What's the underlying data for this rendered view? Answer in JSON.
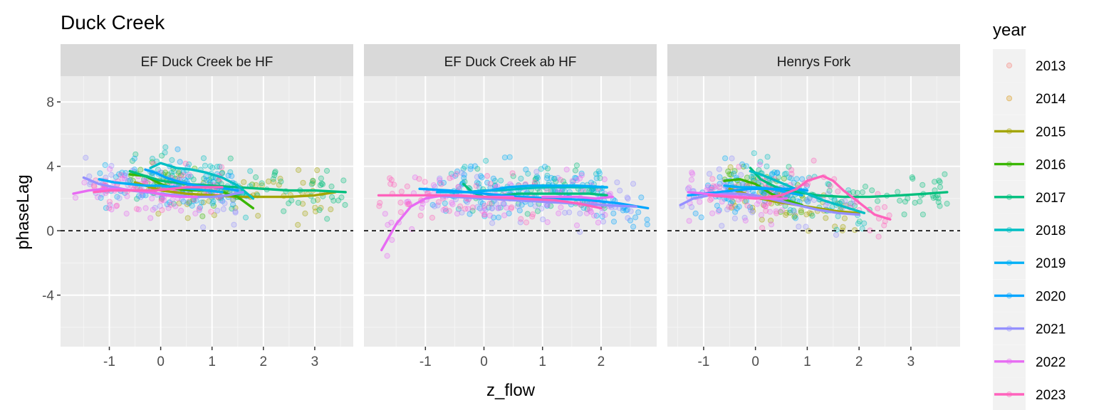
{
  "chart_data": {
    "type": "scatter",
    "title": "Duck Creek",
    "xlabel": "z_flow",
    "ylabel": "phaseLag",
    "ylim": [
      -7.2,
      9.6
    ],
    "y_ticks": [
      -4,
      0,
      4,
      8
    ],
    "reference_line_y": 0,
    "grid": true,
    "legend": {
      "title": "year",
      "position": "right",
      "entries": [
        {
          "name": "2013",
          "color": "#F8766D",
          "smooth": false
        },
        {
          "name": "2014",
          "color": "#D89000",
          "smooth": false
        },
        {
          "name": "2015",
          "color": "#A3A500",
          "smooth": true
        },
        {
          "name": "2016",
          "color": "#39B600",
          "smooth": true
        },
        {
          "name": "2017",
          "color": "#00BF7D",
          "smooth": true
        },
        {
          "name": "2018",
          "color": "#00BFC4",
          "smooth": true
        },
        {
          "name": "2019",
          "color": "#00B0F6",
          "smooth": true
        },
        {
          "name": "2020",
          "color": "#00A5FF",
          "smooth": true
        },
        {
          "name": "2021",
          "color": "#9590FF",
          "smooth": true
        },
        {
          "name": "2022",
          "color": "#E76BF3",
          "smooth": true
        },
        {
          "name": "2023",
          "color": "#FF62BC",
          "smooth": true
        }
      ]
    },
    "panels": [
      {
        "label": "EF Duck Creek be HF",
        "xlim": [
          -1.95,
          3.75
        ],
        "x_ticks": [
          -1,
          0,
          1,
          2,
          3
        ],
        "smooth": [
          {
            "year": "2015",
            "x": [
              -0.5,
              0,
              0.5,
              1,
              1.5,
              2,
              2.5,
              3,
              3.4
            ],
            "y": [
              3.0,
              2.5,
              2.3,
              2.2,
              2.1,
              2.1,
              2.1,
              2.2,
              2.4
            ]
          },
          {
            "year": "2016",
            "x": [
              -0.6,
              -0.3,
              0,
              0.3,
              0.6,
              0.9,
              1.2,
              1.5,
              1.8
            ],
            "y": [
              3.5,
              3.4,
              2.9,
              2.6,
              2.5,
              2.5,
              2.4,
              2.1,
              1.4
            ]
          },
          {
            "year": "2017",
            "x": [
              -0.6,
              0,
              0.5,
              1,
              1.5,
              2,
              2.5,
              3,
              3.6
            ],
            "y": [
              3.7,
              3.1,
              2.9,
              2.8,
              2.7,
              2.6,
              2.5,
              2.5,
              2.4
            ]
          },
          {
            "year": "2018",
            "x": [
              -0.2,
              0,
              0.3,
              0.6,
              0.9,
              1.2,
              1.5,
              1.8
            ],
            "y": [
              3.9,
              4.2,
              3.9,
              3.8,
              3.6,
              3.3,
              2.8,
              2.0
            ]
          },
          {
            "year": "2019",
            "x": [
              -1.2,
              -0.9,
              -0.6,
              -0.3,
              0,
              0.3,
              0.6,
              0.9,
              1.2
            ],
            "y": [
              3.2,
              3.0,
              2.9,
              2.8,
              2.8,
              2.7,
              2.6,
              2.5,
              2.4
            ]
          },
          {
            "year": "2020",
            "x": [
              -0.3,
              -0.1,
              0.1,
              0.4,
              0.7,
              1,
              1.3,
              1.5
            ],
            "y": [
              3.8,
              3.6,
              3.3,
              3.0,
              2.8,
              2.7,
              2.6,
              2.5
            ]
          },
          {
            "year": "2021",
            "x": [
              -1.5,
              -1.2,
              -0.9,
              -0.6,
              -0.3,
              0,
              0.3,
              0.6,
              1,
              1.3,
              1.6
            ],
            "y": [
              3.3,
              2.9,
              2.7,
              2.5,
              2.4,
              2.3,
              2.2,
              2.1,
              2.1,
              2.2,
              2.4
            ]
          },
          {
            "year": "2022",
            "x": [
              -1.7,
              -1.4,
              -1.1,
              -0.8,
              -0.5,
              -0.2,
              0.1,
              0.4,
              0.7
            ],
            "y": [
              2.3,
              2.5,
              2.6,
              2.6,
              2.5,
              2.4,
              2.2,
              2.1,
              2.1
            ]
          },
          {
            "year": "2023",
            "x": [
              -1.3,
              -1,
              -0.7,
              -0.4,
              -0.1,
              0.2,
              0.5,
              0.8,
              1.2
            ],
            "y": [
              2.4,
              2.5,
              2.5,
              2.5,
              2.5,
              2.6,
              2.7,
              2.7,
              2.7
            ]
          }
        ]
      },
      {
        "label": "EF Duck Creek ab HF",
        "xlim": [
          -2.05,
          2.95
        ],
        "x_ticks": [
          -1,
          0,
          1,
          2
        ],
        "smooth": [
          {
            "year": "2017",
            "x": [
              -0.35,
              -0.2,
              0,
              0.3,
              0.6,
              1,
              1.4,
              1.8,
              2.1
            ],
            "y": [
              2.9,
              2.4,
              2.1,
              2.2,
              2.3,
              2.3,
              2.3,
              2.3,
              2.2
            ]
          },
          {
            "year": "2018",
            "x": [
              -0.6,
              -0.3,
              0,
              0.3,
              0.6,
              1,
              1.4,
              1.8,
              2.1
            ],
            "y": [
              2.4,
              2.4,
              2.5,
              2.5,
              2.6,
              2.7,
              2.7,
              2.7,
              2.7
            ]
          },
          {
            "year": "2019",
            "x": [
              -0.8,
              -0.5,
              -0.2,
              0.1,
              0.4,
              0.8,
              1.2,
              1.6,
              2.1
            ],
            "y": [
              2.4,
              2.4,
              2.4,
              2.5,
              2.7,
              2.8,
              2.8,
              2.8,
              2.7
            ]
          },
          {
            "year": "2020",
            "x": [
              -1.1,
              -0.6,
              0,
              0.6,
              1.2,
              1.8,
              2.3,
              2.8
            ],
            "y": [
              2.6,
              2.5,
              2.3,
              2.1,
              2.0,
              1.9,
              1.7,
              1.4
            ]
          },
          {
            "year": "2021",
            "x": [
              -1,
              -0.5,
              0,
              0.5,
              1,
              1.5,
              2,
              2.6
            ],
            "y": [
              2.2,
              2.1,
              2.0,
              1.9,
              1.8,
              1.7,
              1.6,
              1.5
            ]
          },
          {
            "year": "2022",
            "x": [
              -1.75,
              -1.5,
              -1.25,
              -1,
              -0.7,
              -0.4,
              0,
              0.5
            ],
            "y": [
              -1.2,
              0.4,
              1.5,
              2.0,
              2.2,
              2.2,
              2.1,
              2.1
            ]
          },
          {
            "year": "2023",
            "x": [
              -1.8,
              -1.2,
              -0.6,
              0,
              0.6,
              1.2,
              1.6,
              2.0
            ],
            "y": [
              2.2,
              2.2,
              2.2,
              2.1,
              2.0,
              1.9,
              1.7,
              1.4
            ]
          },
          {
            "year": "2022",
            "x": [
              1.0,
              1.3,
              1.6,
              1.9,
              2.2
            ],
            "y": [
              2.1,
              2.1,
              2.1,
              2.0,
              2.1
            ]
          }
        ]
      },
      {
        "label": "Henrys Fork",
        "xlim": [
          -1.7,
          3.95
        ],
        "x_ticks": [
          -1,
          0,
          1,
          2,
          3
        ],
        "smooth": [
          {
            "year": "2015",
            "x": [
              -0.5,
              -0.2,
              0.1,
              0.4,
              0.8,
              1.2,
              1.6,
              2.0
            ],
            "y": [
              2.6,
              2.3,
              2.0,
              1.8,
              1.6,
              1.4,
              1.2,
              1.1
            ]
          },
          {
            "year": "2016",
            "x": [
              -0.6,
              -0.3,
              0,
              0.3,
              0.6,
              0.9
            ],
            "y": [
              3.1,
              3.2,
              2.9,
              2.3,
              1.9,
              1.6
            ]
          },
          {
            "year": "2017",
            "x": [
              -0.1,
              0.1,
              0.4,
              0.8,
              1.2,
              1.7,
              2.2,
              2.8,
              3.3,
              3.7
            ],
            "y": [
              3.9,
              3.2,
              2.7,
              2.4,
              2.2,
              2.1,
              2.1,
              2.2,
              2.3,
              2.4
            ]
          },
          {
            "year": "2018",
            "x": [
              -0.1,
              0.1,
              0.4,
              0.7,
              1,
              1.3,
              1.6,
              1.9,
              2.1
            ],
            "y": [
              3.7,
              3.5,
              3.1,
              2.7,
              2.3,
              1.9,
              1.6,
              1.3,
              1.1
            ]
          },
          {
            "year": "2019",
            "x": [
              -0.6,
              -0.3,
              0,
              0.3,
              0.6,
              0.9
            ],
            "y": [
              2.8,
              2.7,
              2.7,
              2.6,
              2.4,
              2.2
            ]
          },
          {
            "year": "2020",
            "x": [
              -1.3,
              -1,
              -0.7,
              -0.4,
              -0.1,
              0.2,
              0.5,
              0.8,
              1.0
            ],
            "y": [
              2.2,
              2.3,
              2.4,
              2.5,
              2.6,
              2.6,
              2.6,
              2.6,
              2.5
            ]
          },
          {
            "year": "2021",
            "x": [
              -1.45,
              -1.2,
              -0.9,
              -0.6,
              -0.3,
              0,
              0.4,
              0.8,
              1.2,
              1.6,
              2.0
            ],
            "y": [
              1.6,
              2.0,
              2.2,
              2.3,
              2.3,
              2.2,
              1.9,
              1.6,
              1.3,
              1.1,
              1.0
            ]
          },
          {
            "year": "2022",
            "x": [
              -1.3,
              -1,
              -0.6,
              -0.2,
              0.2,
              0.6
            ],
            "y": [
              2.4,
              2.3,
              2.2,
              2.1,
              2.0,
              2.0
            ]
          },
          {
            "year": "2023",
            "x": [
              -0.9,
              -0.5,
              0,
              0.5,
              0.8,
              1.0,
              1.3,
              1.5,
              1.7,
              1.9,
              2.1,
              2.3,
              2.6
            ],
            "y": [
              2.2,
              2.1,
              2.0,
              2.2,
              2.6,
              3.1,
              3.4,
              3.1,
              2.5,
              2.0,
              1.5,
              1.0,
              0.7
            ]
          }
        ]
      }
    ]
  }
}
